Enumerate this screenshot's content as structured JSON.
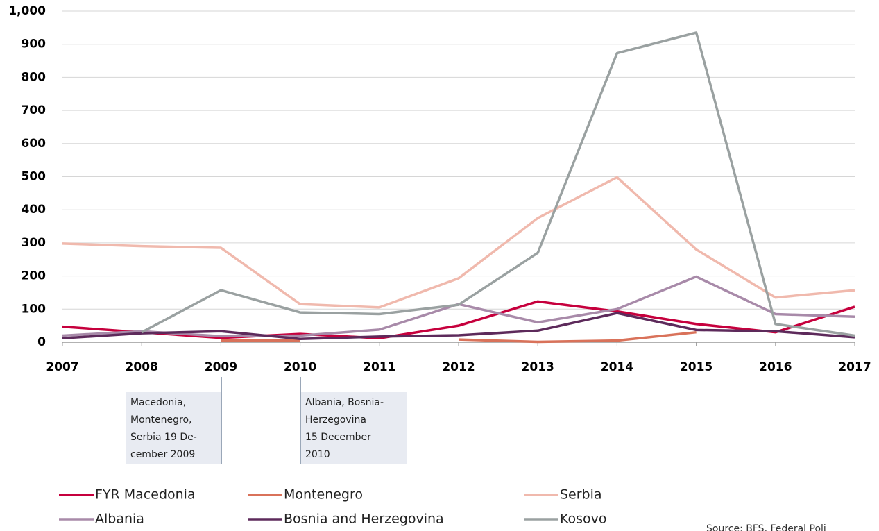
{
  "chart_data": {
    "type": "line",
    "x": [
      2007,
      2008,
      2009,
      2010,
      2011,
      2012,
      2013,
      2014,
      2015,
      2016,
      2017
    ],
    "xlim": [
      2007,
      2017
    ],
    "xticks": [
      2007,
      2008,
      2009,
      2010,
      2011,
      2012,
      2013,
      2014,
      2015,
      2016,
      2017
    ],
    "ylim": [
      0,
      1000
    ],
    "yticks": [
      0,
      100,
      200,
      300,
      400,
      500,
      600,
      700,
      800,
      900,
      {
        "value": 1000,
        "label": "1,000"
      }
    ],
    "grid": true,
    "series": [
      {
        "name": "FYR Macedonia",
        "color": "#c6003d",
        "values": [
          47,
          30,
          13,
          25,
          12,
          50,
          123,
          93,
          55,
          30,
          107
        ]
      },
      {
        "name": "Montenegro",
        "color": "#d9725a",
        "values": [
          null,
          null,
          5,
          5,
          null,
          8,
          1,
          5,
          30,
          null,
          null
        ]
      },
      {
        "name": "Serbia",
        "color": "#f0b9ad",
        "values": [
          298,
          290,
          285,
          115,
          105,
          193,
          375,
          498,
          280,
          135,
          157
        ]
      },
      {
        "name": "Albania",
        "color": "#a88aa9",
        "values": [
          20,
          33,
          18,
          20,
          38,
          115,
          60,
          100,
          198,
          85,
          77
        ]
      },
      {
        "name": "Bosnia and Herzegovina",
        "color": "#5d2a5b",
        "values": [
          12,
          27,
          33,
          10,
          17,
          21,
          35,
          88,
          37,
          33,
          15
        ]
      },
      {
        "name": "Kosovo",
        "color": "#9aa1a1",
        "values": [
          null,
          30,
          157,
          90,
          85,
          113,
          270,
          873,
          935,
          55,
          20
        ]
      }
    ],
    "annotations": [
      {
        "lines": [
          "Macedonia,",
          "Montenegro,",
          "Serbia 19 De-",
          "cember 2009"
        ]
      },
      {
        "lines": [
          "Albania, Bosnia-",
          "Herzegovina",
          "15 December",
          "2010"
        ]
      }
    ],
    "source": "Source: BFS, Federal Poli"
  }
}
